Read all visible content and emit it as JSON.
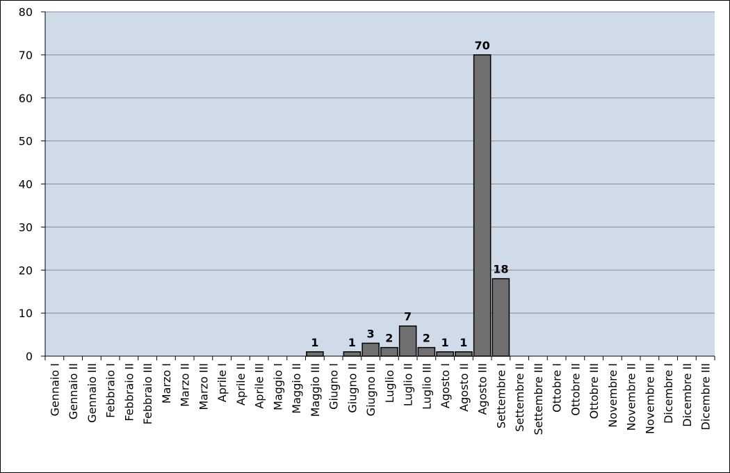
{
  "chart_data": {
    "type": "bar",
    "categories": [
      "Gennaio I",
      "Gennaio II",
      "Gennaio III",
      "Febbraio I",
      "Febbraio II",
      "Febbraio III",
      "Marzo I",
      "Marzo II",
      "Marzo III",
      "Aprile I",
      "Aprile II",
      "Aprile III",
      "Maggio I",
      "Maggio II",
      "Maggio III",
      "Giugno I",
      "Giugno II",
      "Giugno III",
      "Luglio I",
      "Luglio II",
      "Luglio III",
      "Agosto I",
      "Agosto II",
      "Agosto III",
      "Settembre I",
      "Settembre II",
      "Settembre III",
      "Ottobre I",
      "Ottobre II",
      "Ottobre III",
      "Novembre I",
      "Novembre II",
      "Novembre III",
      "Dicembre I",
      "Dicembre II",
      "Dicembre III"
    ],
    "values": [
      null,
      null,
      null,
      null,
      null,
      null,
      null,
      null,
      null,
      null,
      null,
      null,
      null,
      null,
      1,
      null,
      1,
      3,
      2,
      7,
      2,
      1,
      1,
      70,
      18,
      null,
      null,
      null,
      null,
      null,
      null,
      null,
      null,
      null,
      null,
      null
    ],
    "color": "#707070",
    "ylim": [
      0,
      80
    ],
    "yticks": [
      0,
      10,
      20,
      30,
      40,
      50,
      60,
      70,
      80
    ],
    "grid": true
  }
}
